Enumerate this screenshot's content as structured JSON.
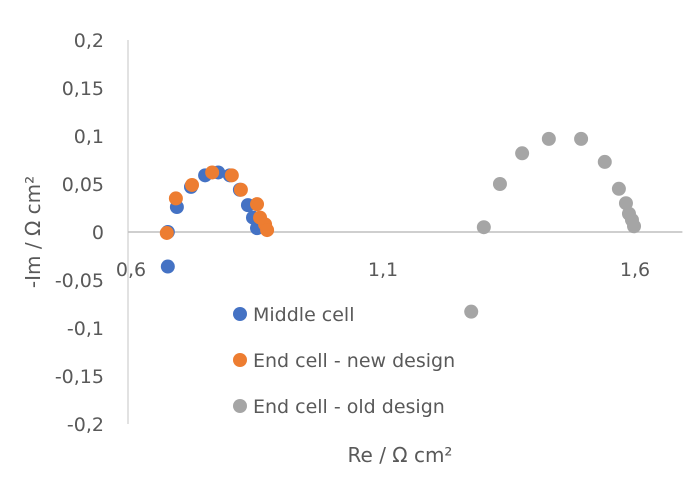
{
  "chart_data": {
    "type": "scatter",
    "title": "",
    "xlabel": "Re  / Ω cm²",
    "ylabel": "-Im / Ω cm²",
    "xlim": [
      0.6,
      1.7
    ],
    "ylim": [
      -0.2,
      0.2
    ],
    "x_ticks": [
      0.6,
      1.1,
      1.6
    ],
    "x_tick_labels": [
      "0,6",
      "1,1",
      "1,6"
    ],
    "y_ticks": [
      0.2,
      0.15,
      0.1,
      0.05,
      0,
      -0.05,
      -0.1,
      -0.15,
      -0.2
    ],
    "y_tick_labels": [
      "0,2",
      "0,15",
      "0,1",
      "0,05",
      "0",
      "-0,05",
      "-0,1",
      "-0,15",
      "-0,2"
    ],
    "grid": false,
    "legend_placement": "center-left",
    "series": [
      {
        "name": "Middle cell",
        "color": "#4472C4",
        "x": [
          0.679,
          0.679,
          0.697,
          0.725,
          0.753,
          0.779,
          0.802,
          0.822,
          0.838,
          0.848,
          0.856
        ],
        "y": [
          -0.036,
          0.0,
          0.026,
          0.047,
          0.059,
          0.062,
          0.059,
          0.044,
          0.028,
          0.015,
          0.004
        ]
      },
      {
        "name": "End cell - new design",
        "color": "#ED7D31",
        "x": [
          0.677,
          0.695,
          0.727,
          0.767,
          0.806,
          0.824,
          0.856,
          0.862,
          0.872,
          0.876
        ],
        "y": [
          -0.001,
          0.035,
          0.049,
          0.062,
          0.059,
          0.044,
          0.029,
          0.015,
          0.008,
          0.002
        ]
      },
      {
        "name": "End cell - old design",
        "color": "#A5A5A5",
        "x": [
          1.281,
          1.306,
          1.338,
          1.382,
          1.435,
          1.499,
          1.546,
          1.574,
          1.588,
          1.594,
          1.6,
          1.604
        ],
        "y": [
          -0.083,
          0.005,
          0.05,
          0.082,
          0.097,
          0.097,
          0.073,
          0.045,
          0.03,
          0.019,
          0.0125,
          0.006
        ]
      }
    ]
  }
}
